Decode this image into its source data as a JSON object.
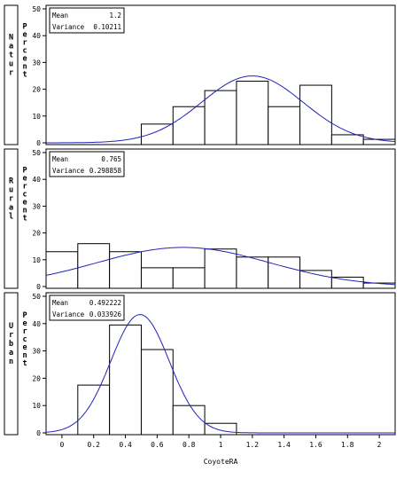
{
  "chart_data": {
    "type": "bar",
    "xlabel": "CoyoteRA",
    "ylabel": "Percent",
    "x_ticks": [
      0,
      0.2,
      0.4,
      0.6,
      0.8,
      1,
      1.2,
      1.4,
      1.6,
      1.8,
      2
    ],
    "x_tick_labels": [
      "0",
      "0.2",
      "0.4",
      "0.6",
      "0.8",
      "1",
      "1.2",
      "1.4",
      "1.6",
      "1.8",
      "2"
    ],
    "xlim": [
      -0.1,
      2.1
    ],
    "ylim": [
      0,
      50
    ],
    "y_ticks": [
      0,
      10,
      20,
      30,
      40,
      50
    ],
    "bin_width": 0.2,
    "stat_labels": {
      "mean": "Mean",
      "variance": "Variance"
    },
    "curve_color": "#2222bb",
    "panels": [
      {
        "group": "Natur",
        "mean": "1.2",
        "variance": "0.10211",
        "mean_value": 1.2,
        "variance_value": 0.10211,
        "bins": [
          {
            "x0": 0.5,
            "value": 7
          },
          {
            "x0": 0.7,
            "value": 13.5
          },
          {
            "x0": 0.9,
            "value": 19.5
          },
          {
            "x0": 1.1,
            "value": 23
          },
          {
            "x0": 1.3,
            "value": 13.5
          },
          {
            "x0": 1.5,
            "value": 21.5
          },
          {
            "x0": 1.7,
            "value": 3
          },
          {
            "x0": 1.9,
            "value": 1.3
          }
        ]
      },
      {
        "group": "Rural",
        "mean": "0.765",
        "variance": "0.298858",
        "mean_value": 0.765,
        "variance_value": 0.298858,
        "bins": [
          {
            "x0": -0.1,
            "value": 13
          },
          {
            "x0": 0.1,
            "value": 16
          },
          {
            "x0": 0.3,
            "value": 13
          },
          {
            "x0": 0.5,
            "value": 7
          },
          {
            "x0": 0.7,
            "value": 7
          },
          {
            "x0": 0.9,
            "value": 14
          },
          {
            "x0": 1.1,
            "value": 11
          },
          {
            "x0": 1.3,
            "value": 11
          },
          {
            "x0": 1.5,
            "value": 6
          },
          {
            "x0": 1.7,
            "value": 3.5
          },
          {
            "x0": 1.9,
            "value": 1.3
          }
        ]
      },
      {
        "group": "Urban",
        "mean": "0.492222",
        "variance": "0.033926",
        "mean_value": 0.492222,
        "variance_value": 0.033926,
        "bins": [
          {
            "x0": 0.1,
            "value": 17.5
          },
          {
            "x0": 0.3,
            "value": 39.5
          },
          {
            "x0": 0.5,
            "value": 30.5
          },
          {
            "x0": 0.7,
            "value": 10
          },
          {
            "x0": 0.9,
            "value": 3.5
          }
        ]
      }
    ]
  }
}
